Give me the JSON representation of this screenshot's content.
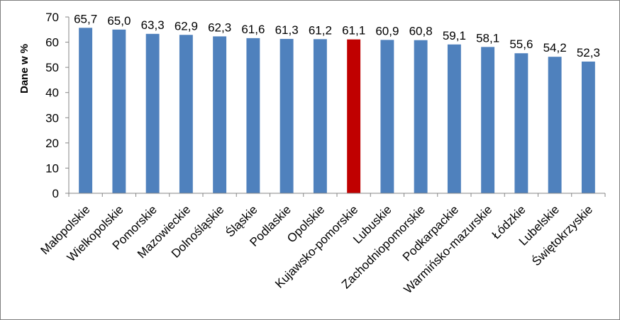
{
  "chart_data": {
    "type": "bar",
    "ylabel": "Dane w %",
    "xlabel": "",
    "ylim": [
      0,
      70
    ],
    "yticks": [
      0,
      10,
      20,
      30,
      40,
      50,
      60,
      70
    ],
    "ytick_labels": [
      "0",
      "10",
      "20",
      "30",
      "40",
      "50",
      "60",
      "70"
    ],
    "grid": false,
    "categories": [
      "Małopolskie",
      "Wielkopolskie",
      "Pomorskie",
      "Mazowieckie",
      "Dolnośląskie",
      "Śląskie",
      "Podlaskie",
      "Opolskie",
      "Kujawsko-pomorskie",
      "Lubuskie",
      "Zachodniopomorskie",
      "Podkarpackie",
      "Warmińsko-mazurskie",
      "Łódzkie",
      "Lubelskie",
      "Świętokrzyskie"
    ],
    "values": [
      65.7,
      65.0,
      63.3,
      62.9,
      62.3,
      61.6,
      61.3,
      61.2,
      61.1,
      60.9,
      60.8,
      59.1,
      58.1,
      55.6,
      54.2,
      52.3
    ],
    "data_labels": [
      "65,7",
      "65,0",
      "63,3",
      "62,9",
      "62,3",
      "61,6",
      "61,3",
      "61,2",
      "61,1",
      "60,9",
      "60,8",
      "59,1",
      "58,1",
      "55,6",
      "54,2",
      "52,3"
    ],
    "colors": {
      "default_bar": "#4f81bd",
      "highlight_bar": "#c00000"
    },
    "highlight_category": "Kujawsko-pomorskie"
  }
}
